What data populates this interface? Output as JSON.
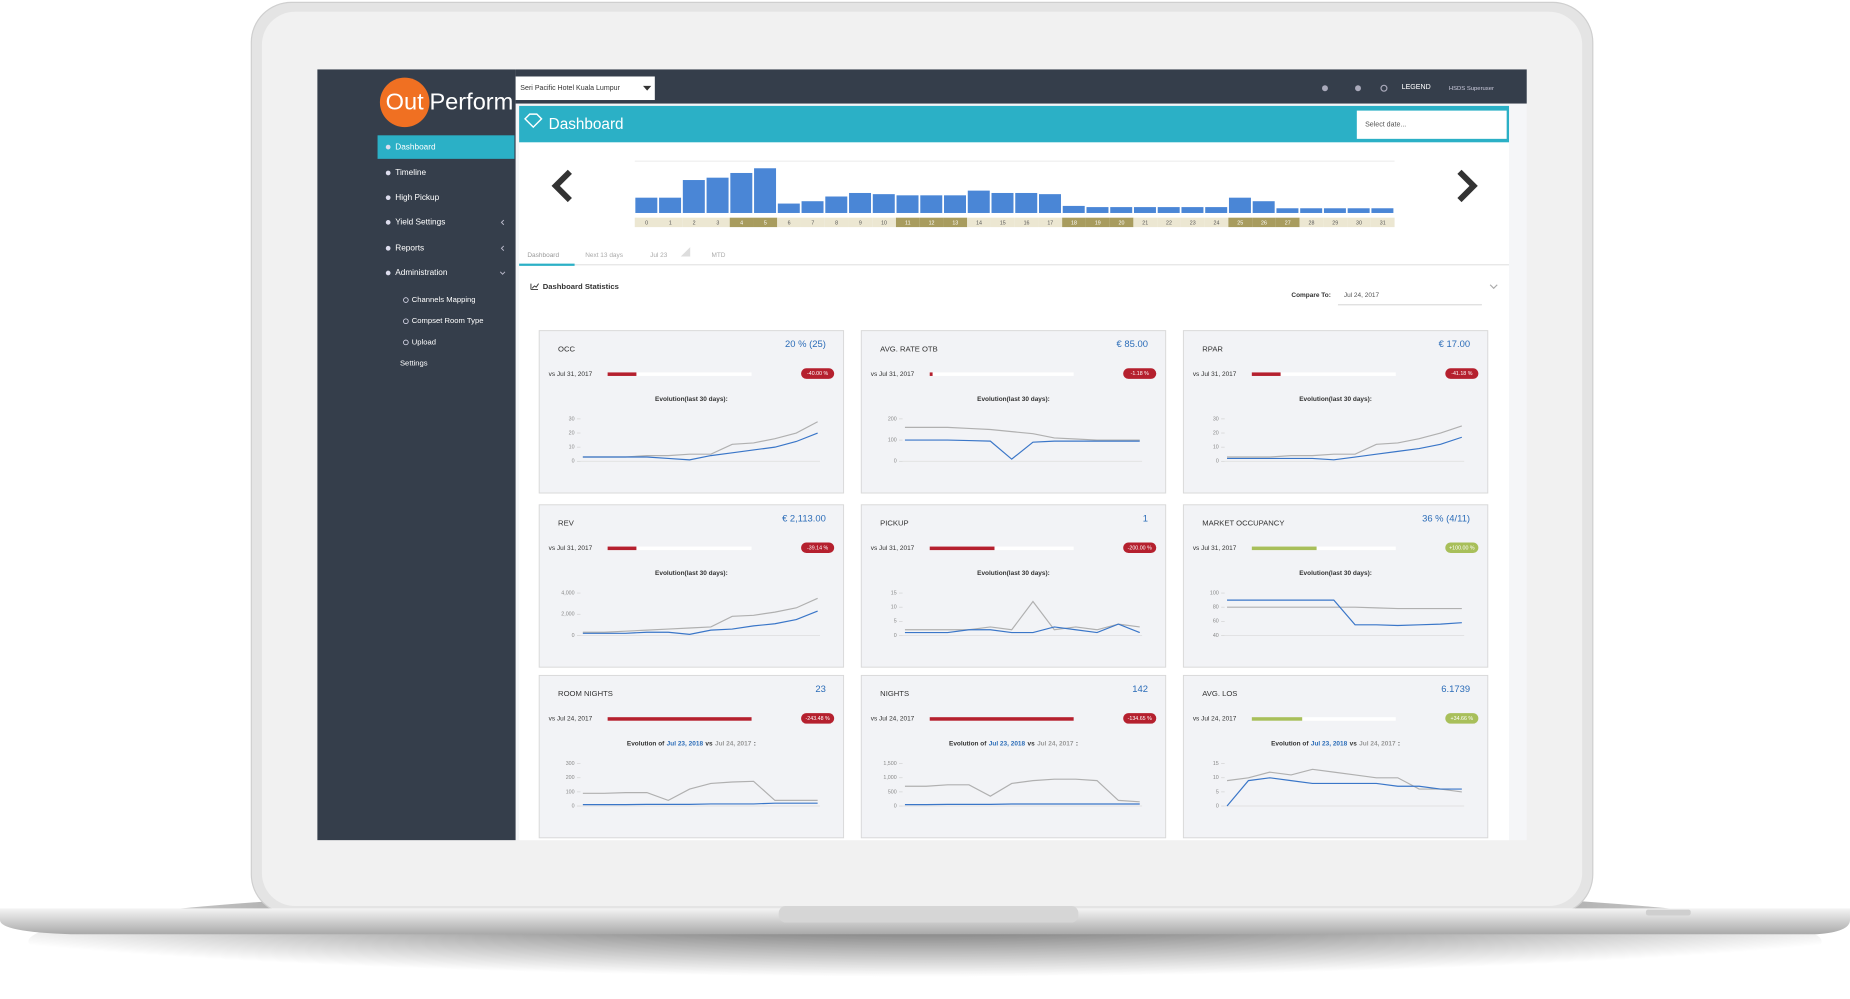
{
  "sidebar": {
    "logo_out": "Out",
    "logo_perform": "Perform",
    "menu": [
      "Dashboard",
      "Timeline",
      "High Pickup",
      "Yield Settings",
      "Reports",
      "Administration"
    ],
    "submenu": [
      "Channels Mapping",
      "Compset Room Type",
      "Upload",
      "Settings"
    ]
  },
  "topbar": {
    "hotel": "Seri Pacific Hotel Kuala Lumpur",
    "legend": "LEGEND",
    "user": "HSDS Superuser"
  },
  "header": {
    "title": "Dashboard",
    "date_placeholder": "Select date..."
  },
  "calendar": {
    "type": "bar",
    "color": "#4a86d6",
    "categories": [
      0,
      1,
      2,
      3,
      4,
      5,
      6,
      7,
      8,
      9,
      10,
      11,
      12,
      13,
      14,
      15,
      16,
      17,
      18,
      19,
      20,
      21,
      22,
      23,
      24,
      25,
      26,
      27,
      28,
      29,
      30,
      31
    ],
    "values": [
      13,
      13,
      28,
      30,
      34,
      38,
      8,
      10,
      14,
      17,
      16,
      15,
      15,
      15,
      19,
      17,
      17,
      16,
      6,
      5,
      5,
      5,
      5,
      5,
      5,
      13,
      10,
      4,
      4,
      4,
      4,
      4
    ],
    "weekend_days": [
      4,
      5,
      11,
      12,
      13,
      18,
      19,
      20,
      25,
      26,
      27
    ]
  },
  "tabs": [
    "Dashboard",
    "Next 13 days",
    "Jul 23",
    "MTD"
  ],
  "stats": {
    "title": "Dashboard Statistics",
    "compare_label": "Compare To:",
    "compare_date": "Jul 24, 2017"
  },
  "cards": [
    {
      "title": "OCC",
      "value": "20 % (25)",
      "vs": "vs Jul 31, 2017",
      "change": "-40.00 %",
      "color": "#b5202e",
      "bar": 0.2,
      "evolution": [
        "Evolution(last 30 days):"
      ],
      "chart": {
        "type": "line",
        "ylim": [
          0,
          30
        ],
        "yticks": [
          0,
          10,
          20,
          30
        ],
        "series": [
          {
            "color": "#b0b0b0",
            "values": [
              3,
              3,
              3,
              4,
              4,
              5,
              5,
              12,
              13,
              16,
              20,
              28
            ]
          },
          {
            "color": "#3a76c8",
            "values": [
              3,
              3,
              3,
              3,
              2,
              1,
              4,
              6,
              8,
              10,
              14,
              20
            ]
          }
        ]
      }
    },
    {
      "title": "AVG. RATE OTB",
      "value": "€ 85.00",
      "vs": "vs Jul 31, 2017",
      "change": "-1.18 %",
      "color": "#b5202e",
      "bar": 0.02,
      "evolution": [
        "Evolution(last 30 days):"
      ],
      "chart": {
        "type": "line",
        "ylim": [
          0,
          200
        ],
        "yticks": [
          0,
          100,
          200
        ],
        "series": [
          {
            "color": "#b0b0b0",
            "values": [
              160,
              160,
              160,
              155,
              150,
              140,
              130,
              110,
              105,
              100,
              100,
              100
            ]
          },
          {
            "color": "#3a76c8",
            "values": [
              100,
              100,
              100,
              98,
              95,
              10,
              90,
              95,
              95,
              95,
              95,
              95
            ]
          }
        ]
      }
    },
    {
      "title": "RPAR",
      "value": "€ 17.00",
      "vs": "vs Jul 31, 2017",
      "change": "-41.18 %",
      "color": "#b5202e",
      "bar": 0.2,
      "evolution": [
        "Evolution(last 30 days):"
      ],
      "chart": {
        "type": "line",
        "ylim": [
          0,
          30
        ],
        "yticks": [
          0,
          10,
          20,
          30
        ],
        "series": [
          {
            "color": "#b0b0b0",
            "values": [
              3,
              3,
              3,
              4,
              4,
              5,
              5,
              12,
              13,
              16,
              20,
              25
            ]
          },
          {
            "color": "#3a76c8",
            "values": [
              2,
              2,
              2,
              2,
              2,
              1,
              3,
              5,
              7,
              9,
              12,
              17
            ]
          }
        ]
      }
    },
    {
      "title": "REV",
      "value": "€ 2,113.00",
      "vs": "vs Jul 31, 2017",
      "change": "-39.14 %",
      "color": "#b5202e",
      "bar": 0.2,
      "evolution": [
        "Evolution(last 30 days):"
      ],
      "chart": {
        "type": "line",
        "ylim": [
          0,
          4000
        ],
        "yticks": [
          0,
          {
            "value": 2000,
            "label": "2,000"
          },
          {
            "value": 4000,
            "label": "4,000"
          }
        ],
        "series": [
          {
            "color": "#b0b0b0",
            "values": [
              300,
              300,
              400,
              500,
              600,
              700,
              800,
              1800,
              1900,
              2200,
              2600,
              3500
            ]
          },
          {
            "color": "#3a76c8",
            "values": [
              200,
              200,
              200,
              300,
              300,
              100,
              500,
              600,
              900,
              1100,
              1500,
              2300
            ]
          }
        ]
      }
    },
    {
      "title": "PICKUP",
      "value": "1",
      "vs": "vs Jul 31, 2017",
      "change": "-200.00 %",
      "color": "#b5202e",
      "bar": 0.45,
      "evolution": [
        "Evolution(last 30 days):"
      ],
      "chart": {
        "type": "line",
        "ylim": [
          0,
          15
        ],
        "yticks": [
          0,
          5,
          10,
          15
        ],
        "series": [
          {
            "color": "#b0b0b0",
            "values": [
              2,
              2,
              2,
              2,
              3,
              2,
              12,
              2,
              3,
              2,
              4,
              3
            ]
          },
          {
            "color": "#3a76c8",
            "values": [
              1,
              1,
              1,
              2,
              2,
              1,
              1,
              3,
              2,
              1,
              4,
              1
            ]
          }
        ]
      }
    },
    {
      "title": "MARKET OCCUPANCY",
      "value": "36 % (4/11)",
      "vs": "vs Jul 31, 2017",
      "change": "+100.00 %",
      "color": "#a8bf5a",
      "bar": 0.45,
      "evolution": [
        "Evolution(last 30 days):"
      ],
      "chart": {
        "type": "line",
        "ylim": [
          40,
          100
        ],
        "yticks": [
          40,
          60,
          80,
          100
        ],
        "series": [
          {
            "color": "#b0b0b0",
            "values": [
              80,
              80,
              80,
              80,
              80,
              80,
              80,
              79,
              78,
              78,
              78,
              78
            ]
          },
          {
            "color": "#3a76c8",
            "values": [
              90,
              90,
              90,
              90,
              90,
              90,
              55,
              55,
              54,
              55,
              56,
              58
            ]
          }
        ]
      }
    },
    {
      "title": "ROOM NIGHTS",
      "value": "23",
      "vs": "vs Jul 24, 2017",
      "change": "-243.48 %",
      "color": "#b5202e",
      "bar": 1,
      "evolution": [
        "Evolution of",
        "Jul 23, 2018",
        "vs",
        "Jul 24, 2017",
        ":"
      ],
      "chart": {
        "type": "line",
        "ylim": [
          0,
          300
        ],
        "yticks": [
          0,
          100,
          200,
          300
        ],
        "series": [
          {
            "color": "#b0b0b0",
            "values": [
              90,
              90,
              95,
              95,
              40,
              120,
              160,
              170,
              175,
              40,
              40,
              40
            ]
          },
          {
            "color": "#3a76c8",
            "values": [
              10,
              10,
              10,
              12,
              12,
              12,
              15,
              15,
              15,
              20,
              20,
              20
            ]
          }
        ]
      }
    },
    {
      "title": "NIGHTS",
      "value": "142",
      "vs": "vs Jul 24, 2017",
      "change": "-134.65 %",
      "color": "#b5202e",
      "bar": 1,
      "evolution": [
        "Evolution of",
        "Jul 23, 2018",
        "vs",
        "Jul 24, 2017",
        ":"
      ],
      "chart": {
        "type": "line",
        "ylim": [
          0,
          1500
        ],
        "yticks": [
          0,
          500,
          {
            "value": 1000,
            "label": "1,000"
          },
          {
            "value": 1500,
            "label": "1,500"
          }
        ],
        "series": [
          {
            "color": "#b0b0b0",
            "values": [
              700,
              700,
              750,
              750,
              350,
              800,
              900,
              950,
              950,
              900,
              200,
              150
            ]
          },
          {
            "color": "#3a76c8",
            "values": [
              50,
              50,
              60,
              60,
              60,
              70,
              70,
              70,
              70,
              70,
              70,
              70
            ]
          }
        ]
      }
    },
    {
      "title": "AVG. LOS",
      "value": "6.1739",
      "vs": "vs Jul 24, 2017",
      "change": "+34.66 %",
      "color": "#a8bf5a",
      "bar": 0.35,
      "evolution": [
        "Evolution of",
        "Jul 23, 2018",
        "vs",
        "Jul 24, 2017",
        ":"
      ],
      "chart": {
        "type": "line",
        "ylim": [
          0,
          15
        ],
        "yticks": [
          0,
          5,
          10,
          15
        ],
        "series": [
          {
            "color": "#b0b0b0",
            "values": [
              9,
              10,
              12,
              11,
              13,
              12,
              11,
              10,
              10,
              6,
              6,
              5
            ]
          },
          {
            "color": "#3a76c8",
            "values": [
              0,
              9,
              10,
              9,
              8,
              8,
              8,
              8,
              7,
              7,
              6,
              6
            ]
          }
        ]
      }
    }
  ]
}
